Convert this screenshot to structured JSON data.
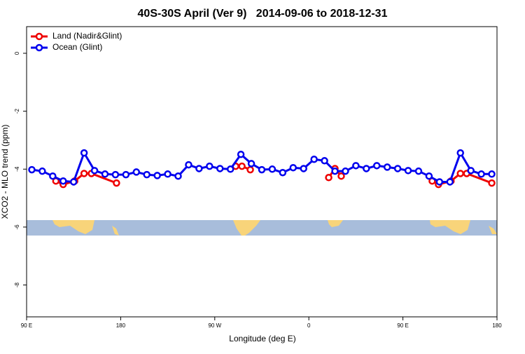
{
  "chart_data": {
    "type": "line",
    "title": "40S-30S April (Ver 9)   2014-09-06 to 2018-12-31",
    "xlabel": "Longitude (deg E)",
    "ylabel": "XCO2 - MLO trend (ppm)",
    "xlim": [
      90,
      540
    ],
    "ylim": [
      -9.1,
      0.92
    ],
    "xticks": [
      {
        "value": 90,
        "label": "90 E"
      },
      180,
      {
        "value": 270,
        "label": "90 W"
      },
      {
        "value": 360,
        "label": "0"
      },
      {
        "value": 450,
        "label": "90 E"
      },
      {
        "value": 540,
        "label": "180"
      }
    ],
    "yticks": [
      0,
      -2,
      -4,
      -6,
      -8
    ],
    "legend": "top-left",
    "series": [
      {
        "name": "Land (Nadir&Glint)",
        "color": "#ee0000",
        "x": [
          118,
          125,
          136,
          145,
          152,
          176,
          null,
          290,
          296,
          304,
          null,
          379,
          385,
          391,
          null,
          478,
          484,
          496,
          505,
          511,
          535
        ],
        "values": [
          -4.41,
          -4.53,
          -4.41,
          -4.15,
          -4.15,
          -4.48,
          null,
          -3.9,
          -3.9,
          -4.02,
          null,
          -4.29,
          -3.98,
          -4.24,
          null,
          -4.41,
          -4.53,
          -4.41,
          -4.15,
          -4.15,
          -4.48
        ]
      },
      {
        "name": "Ocean (Glint)",
        "color": "#0000ee",
        "x": [
          95,
          105,
          115,
          125,
          135,
          145,
          155,
          165,
          175,
          185,
          195,
          205,
          215,
          225,
          235,
          245,
          255,
          265,
          275,
          285,
          295,
          305,
          315,
          325,
          335,
          345,
          355,
          365,
          375,
          385,
          395,
          405,
          415,
          425,
          435,
          445,
          455,
          465,
          475,
          485,
          495,
          505,
          515,
          525,
          535
        ],
        "values": [
          -4.02,
          -4.07,
          -4.24,
          -4.41,
          -4.44,
          -3.44,
          -4.05,
          -4.17,
          -4.19,
          -4.19,
          -4.1,
          -4.19,
          -4.22,
          -4.17,
          -4.24,
          -3.85,
          -3.98,
          -3.9,
          -3.98,
          -4.0,
          -3.49,
          -3.81,
          -4.02,
          -4.0,
          -4.12,
          -3.95,
          -3.98,
          -3.66,
          -3.71,
          -4.07,
          -4.07,
          -3.88,
          -3.98,
          -3.88,
          -3.93,
          -3.98,
          -4.05,
          -4.07,
          -4.24,
          -4.44,
          -4.44,
          -3.44,
          -4.05,
          -4.17,
          -4.17
        ]
      }
    ]
  }
}
